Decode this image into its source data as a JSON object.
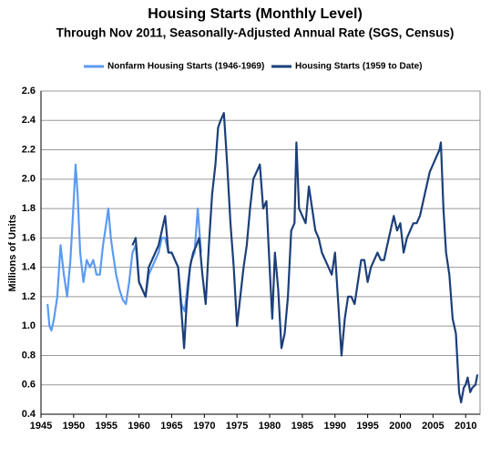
{
  "chart_data": {
    "type": "line",
    "title": "Housing Starts (Monthly Level)",
    "subtitle": "Through Nov 2011, Seasonally-Adjusted Annual Rate (SGS, Census)",
    "y_label": "Millions of Units",
    "xlim": [
      1945,
      2012.2
    ],
    "xticks": [
      1945,
      1950,
      1955,
      1960,
      1965,
      1970,
      1975,
      1980,
      1985,
      1990,
      1995,
      2000,
      2005,
      2010
    ],
    "ylim": [
      0.4,
      2.6
    ],
    "yticks": [
      0.4,
      0.6,
      0.8,
      {
        "value": 1.0,
        "label": "1.0"
      },
      1.2,
      1.4,
      1.6,
      1.8,
      {
        "value": 2.0,
        "label": "2.0"
      },
      2.2,
      2.4,
      2.6
    ],
    "grid": true,
    "series": [
      {
        "name": "Nonfarm Housing Starts (1946-1969)",
        "color": "#5b9bf0",
        "x": [
          1946.0,
          1946.3,
          1946.6,
          1947.0,
          1947.5,
          1948.0,
          1948.5,
          1949.0,
          1949.5,
          1950.0,
          1950.3,
          1950.6,
          1951.0,
          1951.5,
          1952.0,
          1952.5,
          1953.0,
          1953.5,
          1954.0,
          1954.5,
          1955.0,
          1955.3,
          1955.7,
          1956.0,
          1956.5,
          1957.0,
          1957.5,
          1958.0,
          1958.5,
          1959.0,
          1959.5,
          1960.0,
          1960.5,
          1961.0,
          1961.5,
          1962.0,
          1962.5,
          1963.0,
          1963.5,
          1964.0,
          1964.5,
          1965.0,
          1965.5,
          1966.0,
          1966.5,
          1967.0,
          1967.5,
          1968.0,
          1968.5,
          1969.0,
          1969.5
        ],
        "values": [
          1.15,
          1.0,
          0.97,
          1.05,
          1.2,
          1.55,
          1.35,
          1.2,
          1.45,
          1.85,
          2.1,
          1.9,
          1.5,
          1.3,
          1.45,
          1.4,
          1.45,
          1.35,
          1.35,
          1.55,
          1.7,
          1.8,
          1.6,
          1.5,
          1.35,
          1.25,
          1.18,
          1.15,
          1.3,
          1.5,
          1.55,
          1.3,
          1.25,
          1.2,
          1.35,
          1.4,
          1.45,
          1.5,
          1.6,
          1.6,
          1.5,
          1.5,
          1.45,
          1.4,
          1.15,
          1.1,
          1.3,
          1.45,
          1.5,
          1.8,
          1.5
        ]
      },
      {
        "name": "Housing Starts (1959 to Date)",
        "color": "#1c3f7a",
        "x": [
          1959.0,
          1959.5,
          1960.0,
          1960.5,
          1961.0,
          1961.5,
          1962.0,
          1962.5,
          1963.0,
          1963.5,
          1964.0,
          1964.5,
          1965.0,
          1965.5,
          1966.0,
          1966.5,
          1966.9,
          1967.3,
          1967.8,
          1968.3,
          1968.8,
          1969.2,
          1969.7,
          1970.2,
          1970.7,
          1971.2,
          1971.7,
          1972.1,
          1972.5,
          1973.0,
          1973.5,
          1974.0,
          1974.5,
          1975.0,
          1975.5,
          1976.0,
          1976.5,
          1977.0,
          1977.5,
          1978.0,
          1978.5,
          1979.0,
          1979.5,
          1980.0,
          1980.4,
          1980.8,
          1981.3,
          1981.8,
          1982.3,
          1982.8,
          1983.3,
          1983.8,
          1984.1,
          1984.5,
          1985.0,
          1985.5,
          1986.0,
          1986.5,
          1987.0,
          1987.5,
          1988.0,
          1988.5,
          1989.0,
          1989.5,
          1990.0,
          1990.5,
          1991.0,
          1991.5,
          1992.0,
          1992.5,
          1993.0,
          1993.5,
          1994.0,
          1994.5,
          1995.0,
          1995.5,
          1996.0,
          1996.5,
          1997.0,
          1997.5,
          1998.0,
          1998.5,
          1999.0,
          1999.5,
          2000.0,
          2000.5,
          2001.0,
          2001.5,
          2002.0,
          2002.5,
          2003.0,
          2003.5,
          2004.0,
          2004.5,
          2005.0,
          2005.5,
          2006.0,
          2006.2,
          2006.6,
          2007.0,
          2007.5,
          2008.0,
          2008.5,
          2009.0,
          2009.3,
          2009.7,
          2010.0,
          2010.3,
          2010.7,
          2011.0,
          2011.5,
          2011.8
        ],
        "values": [
          1.55,
          1.6,
          1.3,
          1.25,
          1.2,
          1.4,
          1.45,
          1.5,
          1.55,
          1.65,
          1.75,
          1.5,
          1.5,
          1.45,
          1.4,
          1.1,
          0.85,
          1.15,
          1.4,
          1.5,
          1.55,
          1.6,
          1.35,
          1.15,
          1.55,
          1.9,
          2.1,
          2.35,
          2.4,
          2.45,
          2.1,
          1.7,
          1.4,
          1.0,
          1.2,
          1.4,
          1.55,
          1.8,
          2.0,
          2.05,
          2.1,
          1.8,
          1.85,
          1.4,
          1.05,
          1.5,
          1.25,
          0.85,
          0.95,
          1.2,
          1.65,
          1.7,
          2.25,
          1.8,
          1.75,
          1.7,
          1.95,
          1.8,
          1.65,
          1.6,
          1.5,
          1.45,
          1.4,
          1.35,
          1.5,
          1.15,
          0.8,
          1.05,
          1.2,
          1.2,
          1.15,
          1.3,
          1.45,
          1.45,
          1.3,
          1.4,
          1.45,
          1.5,
          1.45,
          1.45,
          1.55,
          1.65,
          1.75,
          1.65,
          1.7,
          1.5,
          1.6,
          1.65,
          1.7,
          1.7,
          1.75,
          1.85,
          1.95,
          2.05,
          2.1,
          2.15,
          2.2,
          2.25,
          1.8,
          1.5,
          1.35,
          1.05,
          0.95,
          0.55,
          0.48,
          0.58,
          0.6,
          0.65,
          0.55,
          0.58,
          0.6,
          0.67
        ]
      }
    ]
  }
}
